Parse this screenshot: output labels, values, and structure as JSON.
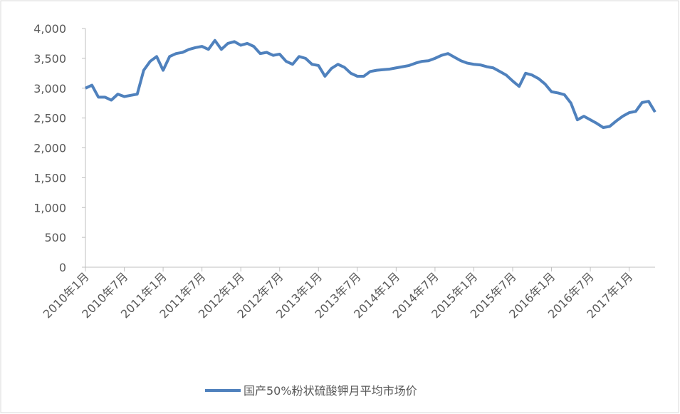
{
  "chart_data": {
    "type": "line",
    "categories": [
      "2010年1月",
      null,
      null,
      null,
      null,
      null,
      "2010年7月",
      null,
      null,
      null,
      null,
      null,
      "2011年1月",
      null,
      null,
      null,
      null,
      null,
      "2011年7月",
      null,
      null,
      null,
      null,
      null,
      "2012年1月",
      null,
      null,
      null,
      null,
      null,
      "2012年7月",
      null,
      null,
      null,
      null,
      null,
      "2013年1月",
      null,
      null,
      null,
      null,
      null,
      "2013年7月",
      null,
      null,
      null,
      null,
      null,
      "2014年1月",
      null,
      null,
      null,
      null,
      null,
      "2014年7月",
      null,
      null,
      null,
      null,
      null,
      "2015年1月",
      null,
      null,
      null,
      null,
      null,
      "2015年7月",
      null,
      null,
      null,
      null,
      null,
      "2016年1月",
      null,
      null,
      null,
      null,
      null,
      "2016年7月",
      null,
      null,
      null,
      null,
      null,
      "2017年1月",
      null,
      null,
      null,
      null
    ],
    "series": [
      {
        "name": "国产50%粉状硫酸钾月平均市场价",
        "color": "#4f81bd",
        "values": [
          3000,
          3050,
          2850,
          2850,
          2800,
          2900,
          2860,
          2880,
          2900,
          3300,
          3450,
          3530,
          3300,
          3530,
          3580,
          3600,
          3650,
          3680,
          3700,
          3650,
          3800,
          3650,
          3750,
          3780,
          3720,
          3750,
          3700,
          3580,
          3600,
          3550,
          3570,
          3450,
          3400,
          3530,
          3500,
          3400,
          3380,
          3200,
          3330,
          3400,
          3350,
          3250,
          3200,
          3200,
          3280,
          3300,
          3310,
          3320,
          3340,
          3360,
          3380,
          3420,
          3450,
          3460,
          3500,
          3550,
          3580,
          3520,
          3460,
          3420,
          3400,
          3390,
          3360,
          3340,
          3280,
          3220,
          3120,
          3030,
          3250,
          3220,
          3160,
          3070,
          2940,
          2920,
          2890,
          2750,
          2470,
          2530,
          2470,
          2410,
          2340,
          2360,
          2450,
          2530,
          2590,
          2610,
          2760,
          2780,
          2600
        ]
      }
    ],
    "ylim": [
      0,
      4000
    ],
    "yticks": [
      0,
      500,
      {
        "value": 1000,
        "label": "1,000"
      },
      {
        "value": 1500,
        "label": "1,500"
      },
      {
        "value": 2000,
        "label": "2,000"
      },
      {
        "value": 2500,
        "label": "2,500"
      },
      {
        "value": 3000,
        "label": "3,000"
      },
      {
        "value": 3500,
        "label": "3,500"
      },
      {
        "value": 4000,
        "label": "4,000"
      }
    ],
    "grid": false,
    "legend": "bottom"
  }
}
